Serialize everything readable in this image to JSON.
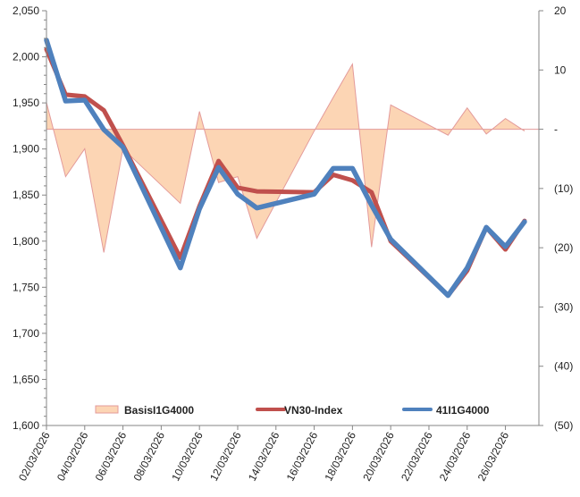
{
  "chart_data": {
    "type": "line",
    "title": "",
    "xlabel": "",
    "ylabel": "",
    "y2label": "",
    "x": [
      "02/03/2026",
      "03/03/2026",
      "04/03/2026",
      "05/03/2026",
      "06/03/2026",
      "09/03/2026",
      "10/03/2026",
      "11/03/2026",
      "12/03/2026",
      "13/03/2026",
      "16/03/2026",
      "17/03/2026",
      "18/03/2026",
      "19/03/2026",
      "20/03/2026",
      "23/03/2026",
      "24/03/2026",
      "25/03/2026",
      "26/03/2026",
      "27/03/2026"
    ],
    "x_day_index": [
      0,
      1,
      2,
      3,
      4,
      7,
      8,
      9,
      10,
      11,
      14,
      15,
      16,
      17,
      18,
      21,
      22,
      23,
      24,
      25
    ],
    "x_ticks": [
      "02/03/2026",
      "04/03/2026",
      "06/03/2026",
      "08/03/2026",
      "10/03/2026",
      "12/03/2026",
      "14/03/2026",
      "16/03/2026",
      "18/03/2026",
      "20/03/2026",
      "22/03/2026",
      "24/03/2026",
      "26/03/2026"
    ],
    "x_tick_day_index": [
      0,
      2,
      4,
      6,
      8,
      10,
      12,
      14,
      16,
      18,
      20,
      22,
      24
    ],
    "x_range_days": [
      0,
      25.75
    ],
    "ylim": [
      1600,
      2050
    ],
    "y_ticks": [
      1600,
      1650,
      1700,
      1750,
      1800,
      1850,
      1900,
      1950,
      2000,
      2050
    ],
    "y_tick_labels": [
      "1,600",
      "1,650",
      "1,700",
      "1,750",
      "1,800",
      "1,850",
      "1,900",
      "1,950",
      "2,000",
      "2,050"
    ],
    "y2lim": [
      -50,
      20
    ],
    "y2_ticks": [
      -50,
      -40,
      -30,
      -20,
      -10,
      0,
      10,
      20
    ],
    "y2_tick_labels": [
      "(50)",
      "(40)",
      "(30)",
      "(20)",
      "(10)",
      "-",
      "10",
      "20"
    ],
    "grid": false,
    "legend_position": "bottom-inside",
    "series": [
      {
        "name": "BasisI1G4000",
        "type": "area",
        "axis": "right",
        "color": "#fcd5b4",
        "edge_color": "#e39a9a",
        "values": [
          4.5,
          -8.0,
          -3.3,
          -20.8,
          -3.3,
          -12.5,
          3.0,
          -9.0,
          -8.0,
          -18.4,
          -0.3,
          5.4,
          11.0,
          -19.9,
          4.1,
          -1.0,
          3.6,
          -0.8,
          1.8,
          -0.3
        ]
      },
      {
        "name": "VN30-Index",
        "type": "line",
        "axis": "left",
        "color": "#c0504d",
        "values": [
          2008,
          1959,
          1957,
          1942,
          1904,
          1782,
          1838,
          1887,
          1858,
          1854,
          1853,
          1872,
          1866,
          1853,
          1800,
          1741,
          1768,
          1815,
          1791,
          1822
        ]
      },
      {
        "name": "41I1G4000",
        "type": "line",
        "axis": "left",
        "color": "#4f81bd",
        "values": [
          2018,
          1952,
          1953,
          1921,
          1902,
          1771,
          1835,
          1880,
          1851,
          1836,
          1851,
          1879,
          1879,
          1839,
          1802,
          1741,
          1771,
          1815,
          1794,
          1821
        ]
      }
    ]
  }
}
